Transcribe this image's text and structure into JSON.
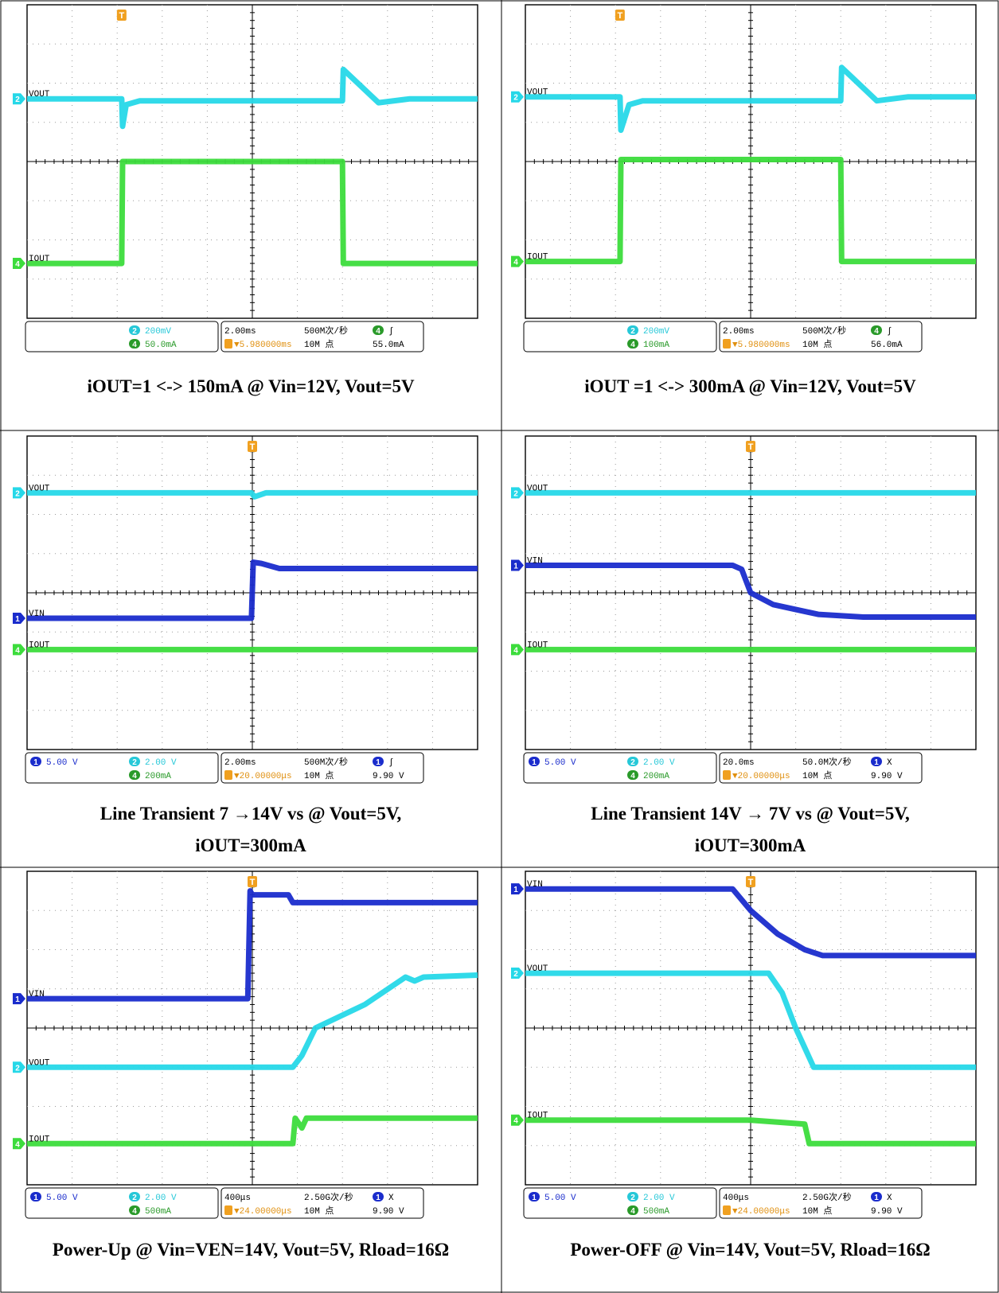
{
  "panels": [
    {
      "id": "p1",
      "caption": [
        "iOUT=1 <-> 150mA @ Vin=12V, Vout=5V"
      ],
      "channels": [
        {
          "marker": "2",
          "label": "VOUT",
          "color": "#26d8e8"
        },
        {
          "marker": "4",
          "label": "IOUT",
          "color": "#3cdc3c"
        }
      ],
      "status": {
        "ch1_scale": "",
        "ch2_scale": "200mV",
        "ch4_scale": "50.0mA",
        "timebase": "2.00ms",
        "sample_rate": "500M次/秒",
        "trigger_delay": "▼5.980000ms",
        "record_length": "10M 点",
        "trigger_source": "4",
        "trigger_mode": "∫",
        "trigger_level": "55.0mA"
      }
    },
    {
      "id": "p2",
      "caption": [
        "iOUT =1 <-> 300mA @ Vin=12V, Vout=5V"
      ],
      "channels": [
        {
          "marker": "2",
          "label": "VOUT",
          "color": "#26d8e8"
        },
        {
          "marker": "4",
          "label": "IOUT",
          "color": "#3cdc3c"
        }
      ],
      "status": {
        "ch1_scale": "",
        "ch2_scale": "200mV",
        "ch4_scale": "100mA",
        "timebase": "2.00ms",
        "sample_rate": "500M次/秒",
        "trigger_delay": "▼5.980000ms",
        "record_length": "10M 点",
        "trigger_source": "4",
        "trigger_mode": "∫",
        "trigger_level": "56.0mA"
      }
    },
    {
      "id": "p3",
      "caption": [
        "Line Transient 7 →14V vs @ Vout=5V,",
        "iOUT=300mA"
      ],
      "channels": [
        {
          "marker": "2",
          "label": "VOUT",
          "color": "#26d8e8"
        },
        {
          "marker": "1",
          "label": "VIN",
          "color": "#1a2ccc"
        },
        {
          "marker": "4",
          "label": "IOUT",
          "color": "#3cdc3c"
        }
      ],
      "status": {
        "ch1_scale": "5.00 V",
        "ch2_scale": "2.00 V",
        "ch4_scale": "200mA",
        "timebase": "2.00ms",
        "sample_rate": "500M次/秒",
        "trigger_delay": "▼20.00000μs",
        "record_length": "10M 点",
        "trigger_source": "1",
        "trigger_mode": "∫",
        "trigger_level": "9.90 V"
      }
    },
    {
      "id": "p4",
      "caption": [
        "Line Transient 14V → 7V vs @ Vout=5V,",
        "iOUT=300mA"
      ],
      "channels": [
        {
          "marker": "2",
          "label": "VOUT",
          "color": "#26d8e8"
        },
        {
          "marker": "1",
          "label": "VIN",
          "color": "#1a2ccc"
        },
        {
          "marker": "4",
          "label": "IOUT",
          "color": "#3cdc3c"
        }
      ],
      "status": {
        "ch1_scale": "5.00 V",
        "ch2_scale": "2.00 V",
        "ch4_scale": "200mA",
        "timebase": "20.0ms",
        "sample_rate": "50.0M次/秒",
        "trigger_delay": "▼20.00000μs",
        "record_length": "10M 点",
        "trigger_source": "1",
        "trigger_mode": "X",
        "trigger_level": "9.90 V"
      }
    },
    {
      "id": "p5",
      "caption": [
        "Power-Up @ Vin=VEN=14V, Vout=5V, Rload=16Ω"
      ],
      "channels": [
        {
          "marker": "1",
          "label": "VIN",
          "color": "#1a2ccc"
        },
        {
          "marker": "2",
          "label": "VOUT",
          "color": "#26d8e8"
        },
        {
          "marker": "4",
          "label": "IOUT",
          "color": "#3cdc3c"
        }
      ],
      "status": {
        "ch1_scale": "5.00 V",
        "ch2_scale": "2.00 V",
        "ch4_scale": "500mA",
        "timebase": "400μs",
        "sample_rate": "2.50G次/秒",
        "trigger_delay": "▼24.00000μs",
        "record_length": "10M 点",
        "trigger_source": "1",
        "trigger_mode": "X",
        "trigger_level": "9.90 V"
      }
    },
    {
      "id": "p6",
      "caption": [
        "Power-OFF @ Vin=14V, Vout=5V, Rload=16Ω"
      ],
      "channels": [
        {
          "marker": "1",
          "label": "VIN",
          "color": "#1a2ccc"
        },
        {
          "marker": "2",
          "label": "VOUT",
          "color": "#26d8e8"
        },
        {
          "marker": "4",
          "label": "IOUT",
          "color": "#3cdc3c"
        }
      ],
      "status": {
        "ch1_scale": "5.00 V",
        "ch2_scale": "2.00 V",
        "ch4_scale": "500mA",
        "timebase": "400μs",
        "sample_rate": "2.50G次/秒",
        "trigger_delay": "▼24.00000μs",
        "record_length": "10M 点",
        "trigger_source": "1",
        "trigger_mode": "X",
        "trigger_level": "9.90 V"
      }
    }
  ],
  "chart_data": [
    {
      "type": "line",
      "title": "iOUT=1 <-> 150mA @ Vin=12V, Vout=5V",
      "x_unit": "div",
      "xlim": [
        0,
        10
      ],
      "y_unit": "div",
      "ylim": [
        -4,
        4
      ],
      "grid": true,
      "series": [
        {
          "name": "VOUT",
          "color": "#26d8e8",
          "x": [
            0,
            2.1,
            2.12,
            2.2,
            2.5,
            7.0,
            7.02,
            7.8,
            8.5,
            10
          ],
          "y": [
            1.6,
            1.6,
            0.9,
            1.45,
            1.55,
            1.55,
            2.35,
            1.5,
            1.6,
            1.6
          ]
        },
        {
          "name": "IOUT",
          "color": "#3cdc3c",
          "x": [
            0,
            2.1,
            2.12,
            7.0,
            7.02,
            10
          ],
          "y": [
            -2.6,
            -2.6,
            0.0,
            0.0,
            -2.6,
            -2.6
          ]
        }
      ]
    },
    {
      "type": "line",
      "title": "iOUT =1 <-> 300mA @ Vin=12V, Vout=5V",
      "x_unit": "div",
      "xlim": [
        0,
        10
      ],
      "y_unit": "div",
      "ylim": [
        -4,
        4
      ],
      "grid": true,
      "series": [
        {
          "name": "VOUT",
          "color": "#26d8e8",
          "x": [
            0,
            2.1,
            2.12,
            2.3,
            2.6,
            7.0,
            7.02,
            7.8,
            8.5,
            10
          ],
          "y": [
            1.65,
            1.65,
            0.8,
            1.45,
            1.55,
            1.55,
            2.4,
            1.55,
            1.65,
            1.65
          ]
        },
        {
          "name": "IOUT",
          "color": "#3cdc3c",
          "x": [
            0,
            2.1,
            2.12,
            7.0,
            7.02,
            10
          ],
          "y": [
            -2.55,
            -2.55,
            0.05,
            0.05,
            -2.55,
            -2.55
          ]
        }
      ]
    },
    {
      "type": "line",
      "title": "Line Transient 7 →14V vs @ Vout=5V,",
      "x_unit": "div",
      "xlim": [
        0,
        10
      ],
      "y_unit": "div",
      "ylim": [
        -4,
        4
      ],
      "grid": true,
      "series": [
        {
          "name": "VOUT",
          "color": "#26d8e8",
          "x": [
            0,
            4.98,
            5.05,
            5.3,
            10
          ],
          "y": [
            2.55,
            2.55,
            2.45,
            2.55,
            2.55
          ]
        },
        {
          "name": "VIN",
          "color": "#1a2ccc",
          "x": [
            0,
            4.98,
            5.02,
            5.2,
            5.6,
            10
          ],
          "y": [
            -0.65,
            -0.65,
            0.78,
            0.75,
            0.62,
            0.62
          ]
        },
        {
          "name": "IOUT",
          "color": "#3cdc3c",
          "x": [
            0,
            10
          ],
          "y": [
            -1.45,
            -1.45
          ]
        }
      ]
    },
    {
      "type": "line",
      "title": "Line Transient 14V → 7V vs @ Vout=5V,",
      "x_unit": "div",
      "xlim": [
        0,
        10
      ],
      "y_unit": "div",
      "ylim": [
        -4,
        4
      ],
      "grid": true,
      "series": [
        {
          "name": "VOUT",
          "color": "#26d8e8",
          "x": [
            0,
            10
          ],
          "y": [
            2.55,
            2.55
          ]
        },
        {
          "name": "VIN",
          "color": "#1a2ccc",
          "x": [
            0,
            4.6,
            4.8,
            5.0,
            5.5,
            6.5,
            7.5,
            10
          ],
          "y": [
            0.7,
            0.7,
            0.6,
            0.0,
            -0.3,
            -0.55,
            -0.62,
            -0.62
          ]
        },
        {
          "name": "IOUT",
          "color": "#3cdc3c",
          "x": [
            0,
            10
          ],
          "y": [
            -1.45,
            -1.45
          ]
        }
      ]
    },
    {
      "type": "line",
      "title": "Power-Up @ Vin=VEN=14V, Vout=5V, Rload=16Ω",
      "x_unit": "div",
      "xlim": [
        0,
        10
      ],
      "y_unit": "div",
      "ylim": [
        -4,
        4
      ],
      "grid": true,
      "series": [
        {
          "name": "VIN",
          "color": "#1a2ccc",
          "x": [
            0,
            4.9,
            4.95,
            5.0,
            5.8,
            5.9,
            10
          ],
          "y": [
            0.75,
            0.75,
            3.5,
            3.4,
            3.4,
            3.2,
            3.2
          ]
        },
        {
          "name": "VOUT",
          "color": "#26d8e8",
          "x": [
            0,
            5.9,
            6.1,
            6.4,
            7.5,
            8.4,
            8.6,
            8.8,
            10
          ],
          "y": [
            -1.0,
            -1.0,
            -0.7,
            0.0,
            0.6,
            1.3,
            1.2,
            1.3,
            1.35
          ]
        },
        {
          "name": "IOUT",
          "color": "#3cdc3c",
          "x": [
            0,
            5.9,
            5.95,
            6.1,
            6.2,
            10
          ],
          "y": [
            -2.95,
            -2.95,
            -2.3,
            -2.55,
            -2.3,
            -2.3
          ]
        }
      ]
    },
    {
      "type": "line",
      "title": "Power-OFF @ Vin=14V, Vout=5V, Rload=16Ω",
      "x_unit": "div",
      "xlim": [
        0,
        10
      ],
      "y_unit": "div",
      "ylim": [
        -4,
        4
      ],
      "grid": true,
      "series": [
        {
          "name": "VIN",
          "color": "#1a2ccc",
          "x": [
            0,
            4.6,
            5.0,
            5.6,
            6.2,
            6.6,
            10
          ],
          "y": [
            3.55,
            3.55,
            3.0,
            2.4,
            2.0,
            1.85,
            1.85
          ]
        },
        {
          "name": "VOUT",
          "color": "#26d8e8",
          "x": [
            0,
            5.4,
            5.7,
            6.0,
            6.4,
            10
          ],
          "y": [
            1.4,
            1.4,
            0.9,
            0.0,
            -1.0,
            -1.0
          ]
        },
        {
          "name": "IOUT",
          "color": "#3cdc3c",
          "x": [
            0,
            5.0,
            6.2,
            6.3,
            10
          ],
          "y": [
            -2.35,
            -2.35,
            -2.45,
            -2.95,
            -2.95
          ]
        }
      ]
    }
  ]
}
